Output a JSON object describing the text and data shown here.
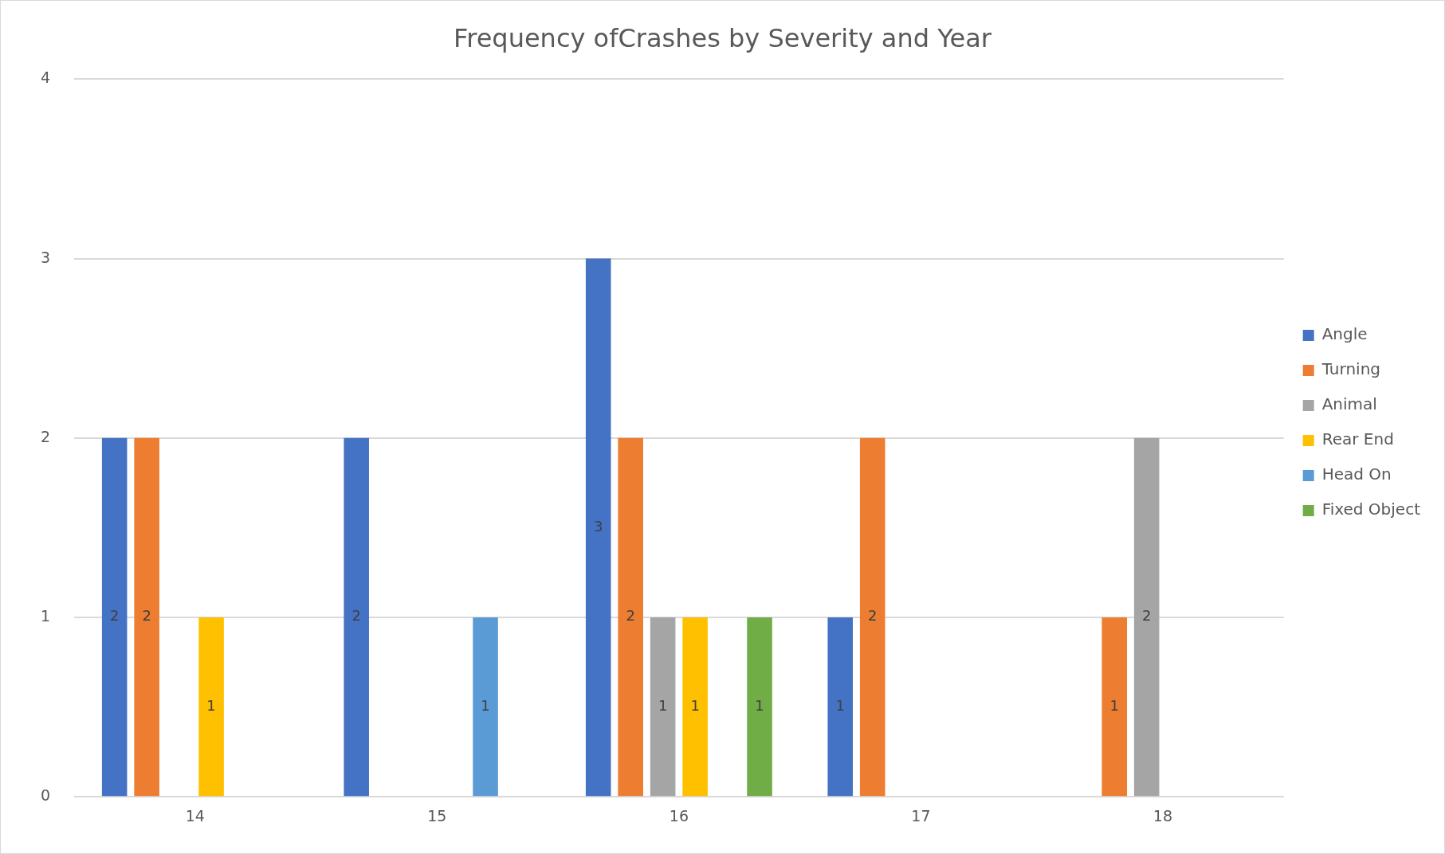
{
  "chart_data": {
    "type": "bar",
    "title": "Frequency ofCrashes by Severity and Year",
    "categories": [
      "14",
      "15",
      "16",
      "17",
      "18"
    ],
    "series": [
      {
        "name": "Angle",
        "color": "#4472c4",
        "values": [
          2,
          2,
          3,
          1,
          null
        ]
      },
      {
        "name": "Turning",
        "color": "#ed7d31",
        "values": [
          2,
          null,
          2,
          2,
          1
        ]
      },
      {
        "name": "Animal",
        "color": "#a5a5a5",
        "values": [
          null,
          null,
          1,
          null,
          2
        ]
      },
      {
        "name": "Rear End",
        "color": "#ffc000",
        "values": [
          1,
          null,
          1,
          null,
          null
        ]
      },
      {
        "name": "Head On",
        "color": "#5b9bd5",
        "values": [
          null,
          1,
          null,
          null,
          null
        ]
      },
      {
        "name": "Fixed Object",
        "color": "#70ad47",
        "values": [
          null,
          null,
          1,
          null,
          null
        ]
      }
    ],
    "ylim": [
      0,
      4
    ],
    "yticks": [
      0,
      1,
      2,
      3,
      4
    ],
    "grid": "y",
    "legend": "right",
    "data_labels": true
  }
}
